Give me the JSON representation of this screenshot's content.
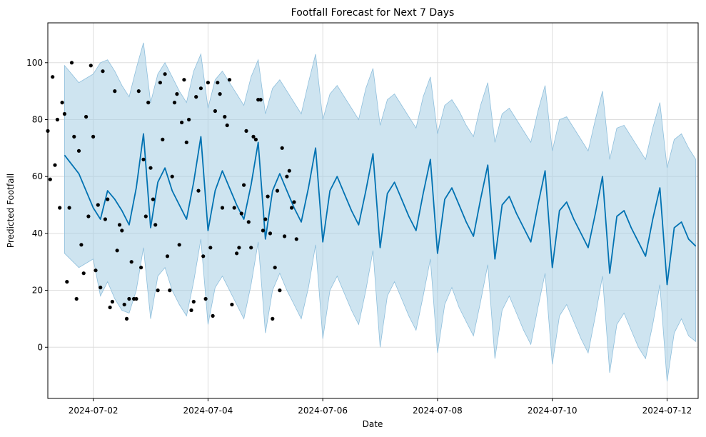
{
  "chart_data": {
    "type": "line",
    "title": "Footfall Forecast for Next 7 Days",
    "xlabel": "Date",
    "ylabel": "Predicted Footfall",
    "x_range": [
      "2024-07-01 05:00",
      "2024-07-12 13:00"
    ],
    "ylim": [
      -18,
      114
    ],
    "grid": true,
    "x_ticks": [
      "2024-07-02",
      "2024-07-04",
      "2024-07-06",
      "2024-07-08",
      "2024-07-10",
      "2024-07-12"
    ],
    "y_ticks": [
      0,
      20,
      40,
      60,
      80,
      100
    ],
    "colors": {
      "forecast_line": "#0072B2",
      "interval_fill": "#a6cde4",
      "observed_points": "#000000",
      "grid": "#dddddd"
    },
    "forecast": {
      "x": [
        "2024-07-01 12:00",
        "2024-07-01 18:00",
        "2024-07-02 00:00",
        "2024-07-02 03:00",
        "2024-07-02 06:00",
        "2024-07-02 09:00",
        "2024-07-02 12:00",
        "2024-07-02 15:00",
        "2024-07-02 18:00",
        "2024-07-02 21:00",
        "2024-07-03 00:00",
        "2024-07-03 03:00",
        "2024-07-03 06:00",
        "2024-07-03 09:00",
        "2024-07-03 12:00",
        "2024-07-03 15:00",
        "2024-07-03 18:00",
        "2024-07-03 21:00",
        "2024-07-04 00:00",
        "2024-07-04 03:00",
        "2024-07-04 06:00",
        "2024-07-04 09:00",
        "2024-07-04 12:00",
        "2024-07-04 15:00",
        "2024-07-04 18:00",
        "2024-07-04 21:00",
        "2024-07-05 00:00",
        "2024-07-05 03:00",
        "2024-07-05 06:00",
        "2024-07-05 09:00",
        "2024-07-05 12:00",
        "2024-07-05 15:00",
        "2024-07-05 18:00",
        "2024-07-05 21:00",
        "2024-07-06 00:00",
        "2024-07-06 03:00",
        "2024-07-06 06:00",
        "2024-07-06 09:00",
        "2024-07-06 12:00",
        "2024-07-06 15:00",
        "2024-07-06 18:00",
        "2024-07-06 21:00",
        "2024-07-07 00:00",
        "2024-07-07 03:00",
        "2024-07-07 06:00",
        "2024-07-07 09:00",
        "2024-07-07 12:00",
        "2024-07-07 15:00",
        "2024-07-07 18:00",
        "2024-07-07 21:00",
        "2024-07-08 00:00",
        "2024-07-08 03:00",
        "2024-07-08 06:00",
        "2024-07-08 09:00",
        "2024-07-08 12:00",
        "2024-07-08 15:00",
        "2024-07-08 18:00",
        "2024-07-08 21:00",
        "2024-07-09 00:00",
        "2024-07-09 03:00",
        "2024-07-09 06:00",
        "2024-07-09 09:00",
        "2024-07-09 12:00",
        "2024-07-09 15:00",
        "2024-07-09 18:00",
        "2024-07-09 21:00",
        "2024-07-10 00:00",
        "2024-07-10 03:00",
        "2024-07-10 06:00",
        "2024-07-10 09:00",
        "2024-07-10 12:00",
        "2024-07-10 15:00",
        "2024-07-10 18:00",
        "2024-07-10 21:00",
        "2024-07-11 00:00",
        "2024-07-11 03:00",
        "2024-07-11 06:00",
        "2024-07-11 09:00",
        "2024-07-11 12:00",
        "2024-07-11 15:00",
        "2024-07-11 18:00",
        "2024-07-11 21:00",
        "2024-07-12 00:00",
        "2024-07-12 03:00",
        "2024-07-12 06:00",
        "2024-07-12 09:00",
        "2024-07-12 12:00"
      ],
      "yhat": [
        67.5,
        61,
        49,
        45,
        55,
        52,
        48,
        43,
        56,
        75,
        42,
        58,
        63,
        55,
        50,
        45,
        58,
        74,
        41,
        55,
        62,
        56,
        50,
        45,
        57,
        72,
        38,
        55,
        61,
        55,
        49,
        44,
        56,
        70,
        37,
        55,
        60,
        54,
        48,
        43,
        55,
        68,
        35,
        54,
        58,
        52,
        46,
        41,
        54,
        66,
        33,
        52,
        56,
        50,
        44,
        39,
        52,
        64,
        31,
        50,
        53,
        47,
        42,
        37,
        50,
        62,
        28,
        48,
        51,
        45,
        40,
        35,
        47,
        60,
        26,
        46,
        48,
        42,
        37,
        32,
        45,
        56,
        22,
        42,
        44,
        38,
        35.5
      ],
      "upper": [
        99,
        93,
        96,
        100,
        101,
        97,
        92,
        88,
        98,
        107,
        86,
        96,
        100,
        95,
        90,
        86,
        97,
        103,
        84,
        94,
        97,
        93,
        89,
        85,
        95,
        101,
        82,
        91,
        94,
        90,
        86,
        82,
        93,
        103,
        80,
        89,
        92,
        88,
        84,
        80,
        91,
        98,
        78,
        87,
        89,
        85,
        81,
        77,
        88,
        95,
        75,
        85,
        87,
        83,
        78,
        74,
        85,
        93,
        72,
        82,
        84,
        80,
        76,
        72,
        83,
        92,
        69,
        80,
        81,
        77,
        73,
        69,
        80,
        90,
        66,
        77,
        78,
        74,
        70,
        66,
        77,
        86,
        63,
        73,
        75,
        70,
        66
      ],
      "lower": [
        33,
        28,
        31,
        18,
        23,
        17,
        13,
        12,
        20,
        35,
        10,
        25,
        28,
        20,
        15,
        11,
        23,
        38,
        8,
        21,
        25,
        20,
        15,
        10,
        22,
        37,
        5,
        20,
        26,
        20,
        15,
        10,
        21,
        36,
        3,
        20,
        25,
        19,
        13,
        8,
        20,
        34,
        0,
        18,
        23,
        17,
        11,
        6,
        18,
        31,
        -2,
        15,
        21,
        14,
        9,
        4,
        16,
        29,
        -4,
        13,
        18,
        12,
        6,
        1,
        14,
        26,
        -6,
        11,
        15,
        9,
        3,
        -2,
        11,
        25,
        -9,
        8,
        12,
        6,
        0,
        -4,
        8,
        22,
        -12,
        5,
        10,
        4,
        2
      ]
    },
    "observed": {
      "x": [
        "2024-07-01 05:00",
        "2024-07-01 06:00",
        "2024-07-01 07:00",
        "2024-07-01 08:00",
        "2024-07-01 09:00",
        "2024-07-01 10:00",
        "2024-07-01 11:00",
        "2024-07-01 12:00",
        "2024-07-01 13:00",
        "2024-07-01 14:00",
        "2024-07-01 15:00",
        "2024-07-01 16:00",
        "2024-07-01 17:00",
        "2024-07-01 18:00",
        "2024-07-01 19:00",
        "2024-07-01 20:00",
        "2024-07-01 21:00",
        "2024-07-01 22:00",
        "2024-07-01 23:00",
        "2024-07-02 00:00",
        "2024-07-02 01:00",
        "2024-07-02 02:00",
        "2024-07-02 03:00",
        "2024-07-02 04:00",
        "2024-07-02 05:00",
        "2024-07-02 06:00",
        "2024-07-02 07:00",
        "2024-07-02 08:00",
        "2024-07-02 09:00",
        "2024-07-02 10:00",
        "2024-07-02 11:00",
        "2024-07-02 12:00",
        "2024-07-02 13:00",
        "2024-07-02 14:00",
        "2024-07-02 15:00",
        "2024-07-02 16:00",
        "2024-07-02 17:00",
        "2024-07-02 18:00",
        "2024-07-02 19:00",
        "2024-07-02 20:00",
        "2024-07-02 21:00",
        "2024-07-02 22:00",
        "2024-07-02 23:00",
        "2024-07-03 00:00",
        "2024-07-03 01:00",
        "2024-07-03 02:00",
        "2024-07-03 03:00",
        "2024-07-03 04:00",
        "2024-07-03 05:00",
        "2024-07-03 06:00",
        "2024-07-03 07:00",
        "2024-07-03 08:00",
        "2024-07-03 09:00",
        "2024-07-03 10:00",
        "2024-07-03 11:00",
        "2024-07-03 12:00",
        "2024-07-03 13:00",
        "2024-07-03 14:00",
        "2024-07-03 15:00",
        "2024-07-03 16:00",
        "2024-07-03 17:00",
        "2024-07-03 18:00",
        "2024-07-03 19:00",
        "2024-07-03 20:00",
        "2024-07-03 21:00",
        "2024-07-03 22:00",
        "2024-07-03 23:00",
        "2024-07-04 00:00",
        "2024-07-04 01:00",
        "2024-07-04 02:00",
        "2024-07-04 03:00",
        "2024-07-04 04:00",
        "2024-07-04 05:00",
        "2024-07-04 06:00",
        "2024-07-04 07:00",
        "2024-07-04 08:00",
        "2024-07-04 09:00",
        "2024-07-04 10:00",
        "2024-07-04 11:00",
        "2024-07-04 12:00",
        "2024-07-04 13:00",
        "2024-07-04 14:00",
        "2024-07-04 15:00",
        "2024-07-04 16:00",
        "2024-07-04 17:00",
        "2024-07-04 18:00",
        "2024-07-04 19:00",
        "2024-07-04 20:00",
        "2024-07-04 21:00",
        "2024-07-04 22:00",
        "2024-07-04 23:00",
        "2024-07-05 00:00",
        "2024-07-05 01:00",
        "2024-07-05 02:00",
        "2024-07-05 03:00",
        "2024-07-05 04:00",
        "2024-07-05 05:00",
        "2024-07-05 06:00",
        "2024-07-05 07:00",
        "2024-07-05 08:00",
        "2024-07-05 09:00",
        "2024-07-05 10:00",
        "2024-07-05 11:00",
        "2024-07-05 12:00",
        "2024-07-05 13:00"
      ],
      "y": [
        76,
        59,
        95,
        64,
        80,
        49,
        86,
        82,
        23,
        49,
        100,
        74,
        17,
        69,
        36,
        26,
        81,
        46,
        99,
        74,
        27,
        50,
        21,
        97,
        45,
        52,
        14,
        16,
        90,
        34,
        43,
        41,
        15,
        10,
        17,
        30,
        17,
        17,
        90,
        28,
        66,
        46,
        86,
        63,
        52,
        43,
        20,
        93,
        73,
        96,
        32,
        20,
        60,
        86,
        89,
        36,
        79,
        94,
        72,
        80,
        13,
        16,
        88,
        55,
        91,
        32,
        17,
        93,
        35,
        11,
        83,
        93,
        89,
        49,
        81,
        78,
        94,
        15,
        49,
        33,
        35,
        47,
        57,
        76,
        44,
        35,
        74,
        73,
        87,
        87,
        41,
        45,
        53,
        40,
        10,
        28,
        55,
        20,
        70,
        39,
        60,
        62,
        49,
        51,
        38
      ]
    }
  }
}
